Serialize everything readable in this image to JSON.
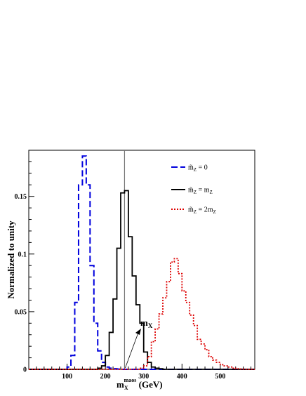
{
  "chart_data": {
    "type": "line",
    "xlabel_main": "m",
    "xlabel_sub": "X",
    "xlabel_sup": "maos",
    "xlabel_unit": " (GeV)",
    "ylabel": "Normalized to unity",
    "xlim": [
      0,
      590
    ],
    "ylim": [
      0,
      0.19
    ],
    "bin_width": 10,
    "x_ticks": [
      100,
      200,
      300,
      400,
      500
    ],
    "y_ticks": [
      0,
      0.05,
      0.1,
      0.15
    ],
    "y_tick_labels": [
      "0",
      "0.05",
      "0.1",
      "0.15"
    ],
    "vertical_line_x": 250,
    "annotation": {
      "text_main": "m",
      "text_sub": "X",
      "arrow_to_x": 250,
      "arrow_to_y": 0.0
    },
    "legend": [
      {
        "label_main": "m̃",
        "label_sub": "Z",
        "label_rest": " = 0",
        "color": "#0000dd",
        "dash": "9,4"
      },
      {
        "label_main": "m̃",
        "label_sub": "Z",
        "label_rest": " = m",
        "label_rest_sub": "Z",
        "color": "#000000",
        "dash": ""
      },
      {
        "label_main": "m̃",
        "label_sub": "Z",
        "label_rest": " = 2m",
        "label_rest_sub": "Z",
        "color": "#dd0000",
        "dash": "2,2"
      }
    ],
    "series": [
      {
        "color": "#0000dd",
        "dash": "9,4",
        "bin_starts": [
          100,
          110,
          120,
          130,
          140,
          150,
          160,
          170,
          180,
          190,
          200,
          210,
          220,
          230
        ],
        "values": [
          0.002,
          0.012,
          0.058,
          0.16,
          0.185,
          0.16,
          0.09,
          0.04,
          0.016,
          0.006,
          0.002,
          0.001,
          0.0005,
          0.0002
        ]
      },
      {
        "color": "#000000",
        "dash": "",
        "bin_starts": [
          180,
          190,
          200,
          210,
          220,
          230,
          240,
          250,
          260,
          270,
          280,
          290,
          300,
          310,
          320,
          330,
          340
        ],
        "values": [
          0.001,
          0.003,
          0.012,
          0.032,
          0.061,
          0.105,
          0.153,
          0.155,
          0.115,
          0.081,
          0.056,
          0.04,
          0.015,
          0.006,
          0.002,
          0.001,
          0.0005
        ]
      },
      {
        "color": "#dd0000",
        "dash": "2,2",
        "bin_starts": [
          290,
          300,
          310,
          320,
          330,
          340,
          350,
          360,
          370,
          380,
          390,
          400,
          410,
          420,
          430,
          440,
          450,
          460,
          470,
          480,
          490,
          500,
          510,
          520,
          530,
          540,
          550
        ],
        "values": [
          0.001,
          0.003,
          0.011,
          0.024,
          0.035,
          0.048,
          0.062,
          0.076,
          0.093,
          0.096,
          0.083,
          0.068,
          0.058,
          0.047,
          0.038,
          0.026,
          0.022,
          0.017,
          0.011,
          0.008,
          0.006,
          0.004,
          0.003,
          0.002,
          0.001,
          0.0005,
          0.0003
        ]
      }
    ]
  }
}
